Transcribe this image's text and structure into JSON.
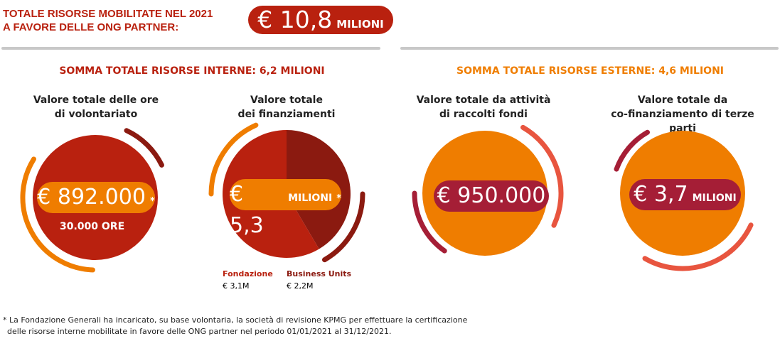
{
  "header": {
    "line1": "TOTALE RISORSE MOBILITATE NEL 2021",
    "line2": "A FAVORE DELLE ONG PARTNER:",
    "total_value": "€ 10,8",
    "total_unit": "MILIONI"
  },
  "internal": {
    "title": "SOMMA TOTALE RISORSE INTERNE: 6,2 MILIONI",
    "volunteer": {
      "title1": "Valore totale delle ore",
      "title2": "di volontariato",
      "value": "€ 892.000",
      "asterisk": "*",
      "sub": "30.000 ORE"
    },
    "funding": {
      "title1": "Valore totale",
      "title2": "dei finanziamenti",
      "value": "€ 5,3",
      "unit": "MILIONI",
      "asterisk": "*"
    }
  },
  "external": {
    "title": "SOMMA TOTALE RISORSE ESTERNE: 4,6 MILIONI",
    "fundraising": {
      "title1": "Valore totale da attività",
      "title2": "di raccolti fondi",
      "value": "€ 950.000"
    },
    "cofunding": {
      "title1": "Valore totale da",
      "title2": "co-finanziamento di terze parti",
      "value": "€ 3,7",
      "unit": "MILIONI"
    }
  },
  "chart_data": {
    "type": "pie",
    "title": "Valore totale dei finanziamenti",
    "labels": [
      "Fondazione",
      "Business Units"
    ],
    "value_labels": [
      "€ 3,1M",
      "€ 2,2M"
    ],
    "values": [
      3.1,
      2.2
    ],
    "colors": [
      "#b9210f",
      "#8b1a10"
    ]
  },
  "footnote": {
    "line1": "* La Fondazione Generali ha incaricato, su base volontaria, la società di revisione KPMG per effettuare la certificazione",
    "line2": "delle risorse interne mobilitate in favore delle ONG partner nel periodo 01/01/2021 al 31/12/2021."
  },
  "colors": {
    "red": "#b9210f",
    "dark": "#8b1a10",
    "orange": "#ef7d00",
    "coral": "#e8553f",
    "crimson": "#a51e36"
  }
}
